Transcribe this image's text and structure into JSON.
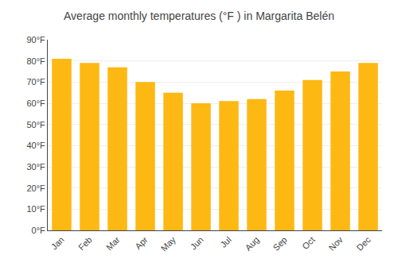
{
  "chart_data": {
    "type": "bar",
    "title": "Average monthly temperatures (°F ) in Margarita Belén",
    "categories": [
      "Jan",
      "Feb",
      "Mar",
      "Apr",
      "May",
      "Jun",
      "Jul",
      "Aug",
      "Sep",
      "Oct",
      "Nov",
      "Dec"
    ],
    "values": [
      81,
      79,
      77,
      70,
      65,
      60,
      61,
      62,
      66,
      71,
      75,
      79
    ],
    "color": "#FDB813",
    "ylim": [
      0,
      90
    ],
    "yticks": [
      {
        "value": 0,
        "label": "0°F"
      },
      {
        "value": 10,
        "label": "10°F"
      },
      {
        "value": 20,
        "label": "20°F"
      },
      {
        "value": 30,
        "label": "30°F"
      },
      {
        "value": 40,
        "label": "40°F"
      },
      {
        "value": 50,
        "label": "50°F"
      },
      {
        "value": 60,
        "label": "60°F"
      },
      {
        "value": 70,
        "label": "70°F"
      },
      {
        "value": 80,
        "label": "80°F"
      },
      {
        "value": 90,
        "label": "90°F"
      }
    ],
    "grid": true
  }
}
